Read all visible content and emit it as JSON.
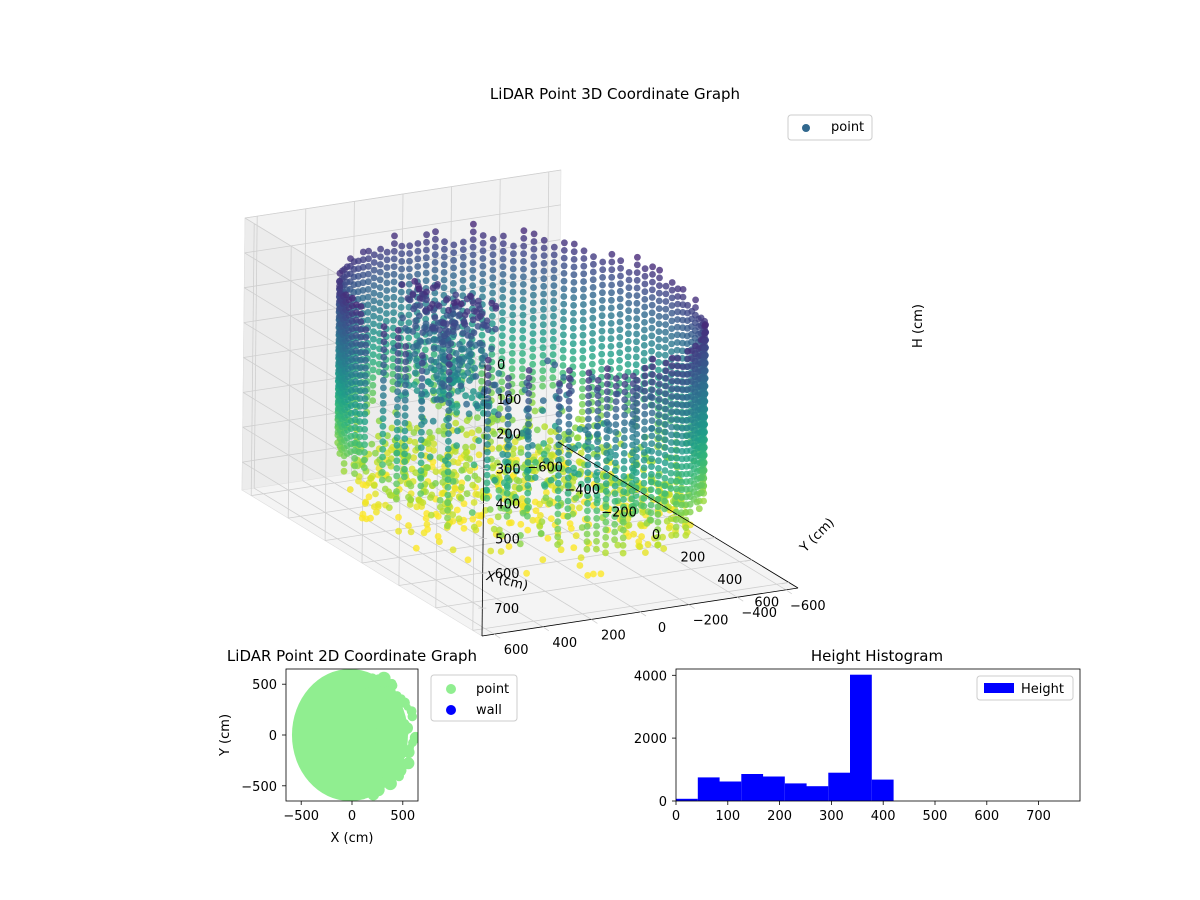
{
  "figure": {
    "width": 1200,
    "height": 900,
    "background": "#ffffff"
  },
  "chart_data": [
    {
      "id": "scatter3d",
      "type": "scatter",
      "title": "LiDAR Point 3D Coordinate Graph",
      "projection": "3d",
      "xlabel": "X (cm)",
      "ylabel": "Y (cm)",
      "zlabel": "H (cm)",
      "xticks": [
        -600,
        -400,
        -200,
        0,
        200,
        400,
        600
      ],
      "yticks": [
        -600,
        -400,
        -200,
        0,
        200,
        400,
        600
      ],
      "zticks": [
        0,
        100,
        200,
        300,
        400,
        500,
        600,
        700
      ],
      "xlim": [
        -650,
        650
      ],
      "ylim": [
        -650,
        650
      ],
      "zlim": [
        0,
        780
      ],
      "z_inverted": true,
      "colormap": "viridis",
      "legend": {
        "placement": "top-right",
        "entries": [
          {
            "label": "point",
            "color": "#31688e"
          }
        ]
      },
      "description_of_points": "points forming a circular wall of radius about 600 cm, denser floor points and a dense cluster near the center at low H"
    },
    {
      "id": "scatter2d",
      "type": "scatter",
      "title": "LiDAR Point 2D Coordinate Graph",
      "xlabel": "X (cm)",
      "ylabel": "Y (cm)",
      "xticks": [
        -500,
        0,
        500
      ],
      "yticks": [
        -500,
        0,
        500
      ],
      "xlim": [
        -650,
        650
      ],
      "ylim": [
        -650,
        650
      ],
      "legend": {
        "placement": "outside-right",
        "entries": [
          {
            "label": "point",
            "color": "#90ee90"
          },
          {
            "label": "wall",
            "color": "#0000ff"
          }
        ]
      }
    },
    {
      "id": "histogram",
      "type": "bar",
      "title": "Height Histogram",
      "xlabel": "",
      "ylabel": "",
      "bin_edges": [
        0,
        42,
        84,
        126,
        168,
        210,
        252,
        294,
        336,
        378,
        420
      ],
      "values": [
        70,
        750,
        620,
        860,
        780,
        560,
        470,
        900,
        4020,
        680
      ],
      "xlim": [
        0,
        780
      ],
      "ylim": [
        0,
        4200
      ],
      "xticks": [
        0,
        100,
        200,
        300,
        400,
        500,
        600,
        700
      ],
      "yticks": [
        0,
        2000,
        4000
      ],
      "bar_color": "#0000ff",
      "legend": {
        "placement": "top-right",
        "entries": [
          {
            "label": "Height",
            "color": "#0000ff"
          }
        ]
      }
    }
  ]
}
